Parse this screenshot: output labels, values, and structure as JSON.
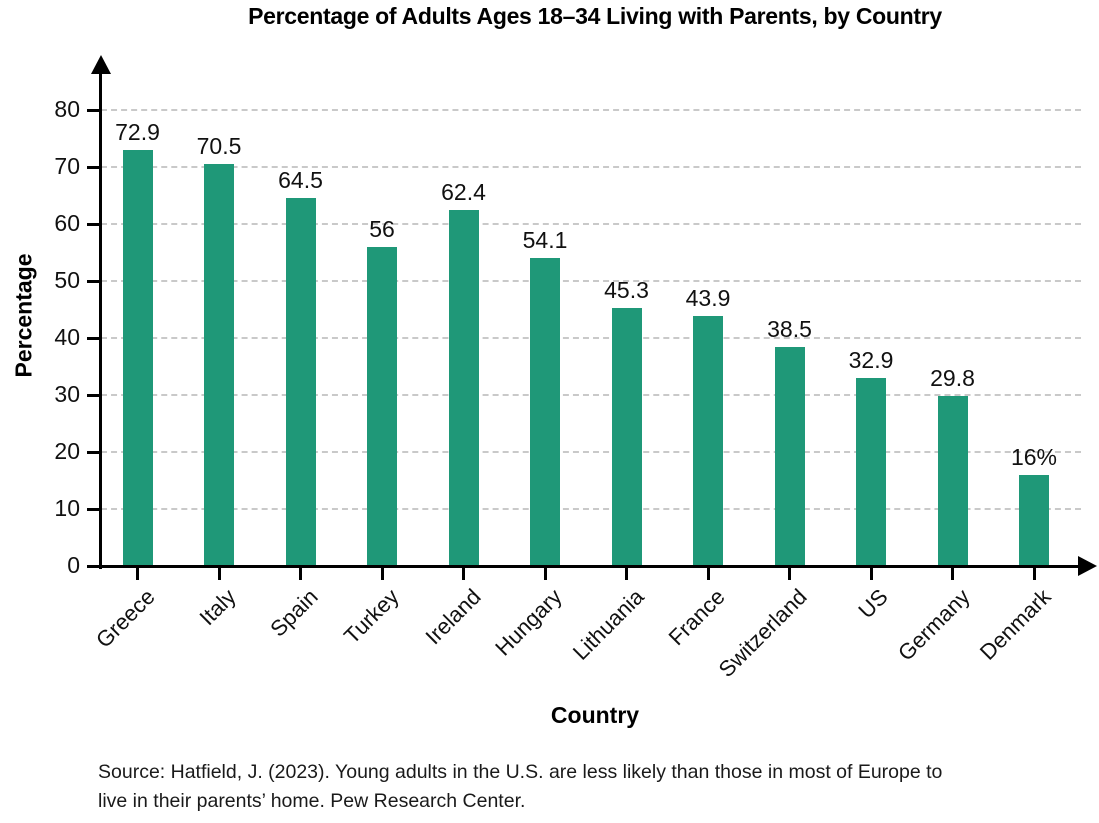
{
  "title": "Percentage of Adults Ages 18–34 Living with Parents, by Country",
  "chart_data": {
    "type": "bar",
    "title": "Percentage of Adults Ages 18–34 Living with Parents, by Country",
    "categories": [
      "Greece",
      "Italy",
      "Spain",
      "Turkey",
      "Ireland",
      "Hungary",
      "Lithuania",
      "France",
      "Switzerland",
      "US",
      "Germany",
      "Denmark"
    ],
    "values": [
      72.9,
      70.5,
      64.5,
      56,
      62.4,
      54.1,
      45.3,
      43.9,
      38.5,
      32.9,
      29.8,
      16
    ],
    "value_labels": [
      "72.9",
      "70.5",
      "64.5",
      "56",
      "62.4",
      "54.1",
      "45.3",
      "43.9",
      "38.5",
      "32.9",
      "29.8",
      "16%"
    ],
    "xlabel": "Country",
    "ylabel": "Percentage",
    "ylim": [
      0,
      85
    ],
    "yticks": [
      0,
      10,
      20,
      30,
      40,
      50,
      60,
      70,
      80
    ],
    "bar_color": "#1f9878",
    "grid": "horizontal-dashed",
    "legend": "none"
  },
  "source_note": {
    "line1": "Source: Hatfield, J. (2023). Young adults in the U.S. are less likely than those in most of Europe to",
    "line2": "live in their parents’ home. Pew Research Center."
  }
}
